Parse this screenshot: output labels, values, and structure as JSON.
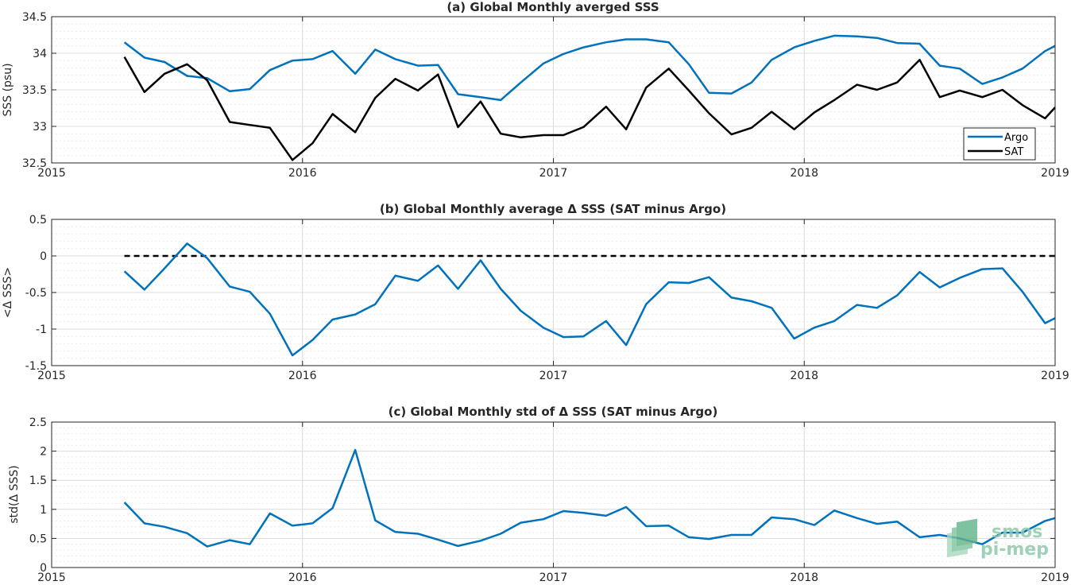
{
  "logo": {
    "line1": "smos",
    "line2": "pi-mep"
  },
  "chart_data": [
    {
      "type": "line",
      "title": "(a) Global Monthly averged SSS",
      "xlabel": "",
      "ylabel": "SSS (psu)",
      "xlim": [
        2015,
        2019
      ],
      "ylim": [
        32.5,
        34.5
      ],
      "xticks": [
        2015,
        2016,
        2017,
        2018,
        2019
      ],
      "xtick_labels": [
        "2015",
        "2016",
        "2017",
        "2018",
        "2019"
      ],
      "yticks": [
        32.5,
        33,
        33.5,
        34,
        34.5
      ],
      "ytick_labels": [
        "32.5",
        "33",
        "33.5",
        "34",
        "34.5"
      ],
      "grid": true,
      "legend": "bottom-right",
      "x": [
        2015.29,
        2015.37,
        2015.45,
        2015.54,
        2015.62,
        2015.71,
        2015.79,
        2015.87,
        2015.96,
        2016.04,
        2016.12,
        2016.21,
        2016.29,
        2016.37,
        2016.46,
        2016.54,
        2016.62,
        2016.71,
        2016.79,
        2016.87,
        2016.96,
        2017.04,
        2017.12,
        2017.21,
        2017.29,
        2017.37,
        2017.46,
        2017.54,
        2017.62,
        2017.71,
        2017.79,
        2017.87,
        2017.96,
        2018.04,
        2018.12,
        2018.21,
        2018.29,
        2018.37,
        2018.46,
        2018.54,
        2018.62,
        2018.71,
        2018.79,
        2018.87,
        2018.96,
        2019.0
      ],
      "series": [
        {
          "name": "Argo",
          "color": "#0072bd",
          "values": [
            34.15,
            33.94,
            33.88,
            33.69,
            33.66,
            33.48,
            33.51,
            33.77,
            33.9,
            33.92,
            34.03,
            33.72,
            34.05,
            33.92,
            33.83,
            33.84,
            33.44,
            33.4,
            33.36,
            33.6,
            33.86,
            33.99,
            34.08,
            34.15,
            34.19,
            34.19,
            34.15,
            33.85,
            33.46,
            33.45,
            33.6,
            33.91,
            34.08,
            34.17,
            34.24,
            34.23,
            34.21,
            34.14,
            34.13,
            33.83,
            33.79,
            33.58,
            33.67,
            33.79,
            34.03,
            34.1
          ]
        },
        {
          "name": "SAT",
          "color": "#000000",
          "values": [
            33.95,
            33.47,
            33.72,
            33.85,
            33.63,
            33.06,
            33.02,
            32.98,
            32.54,
            32.77,
            33.17,
            32.92,
            33.39,
            33.65,
            33.49,
            33.71,
            32.99,
            33.34,
            32.9,
            32.85,
            32.88,
            32.88,
            32.99,
            33.27,
            32.96,
            33.53,
            33.79,
            33.49,
            33.18,
            32.89,
            32.98,
            33.2,
            32.96,
            33.19,
            33.36,
            33.57,
            33.5,
            33.6,
            33.91,
            33.4,
            33.49,
            33.4,
            33.5,
            33.29,
            33.11,
            33.26
          ]
        }
      ]
    },
    {
      "type": "line",
      "title": "(b) Global Monthly average Δ SSS (SAT minus Argo)",
      "xlabel": "",
      "ylabel": "<Δ SSS>",
      "xlim": [
        2015,
        2019
      ],
      "ylim": [
        -1.5,
        0.5
      ],
      "xticks": [
        2015,
        2016,
        2017,
        2018,
        2019
      ],
      "xtick_labels": [
        "2015",
        "2016",
        "2017",
        "2018",
        "2019"
      ],
      "yticks": [
        -1.5,
        -1,
        -0.5,
        0,
        0.5
      ],
      "ytick_labels": [
        "-1.5",
        "-1",
        "-0.5",
        "0",
        "0.5"
      ],
      "grid": true,
      "reference_line": {
        "y": 0,
        "x_start": 2015.29,
        "x_end": 2019.0,
        "color": "#000000",
        "style": "dashed"
      },
      "x": [
        2015.29,
        2015.37,
        2015.45,
        2015.54,
        2015.62,
        2015.71,
        2015.79,
        2015.87,
        2015.96,
        2016.04,
        2016.12,
        2016.21,
        2016.29,
        2016.37,
        2016.46,
        2016.54,
        2016.62,
        2016.71,
        2016.79,
        2016.87,
        2016.96,
        2017.04,
        2017.12,
        2017.21,
        2017.29,
        2017.37,
        2017.46,
        2017.54,
        2017.62,
        2017.71,
        2017.79,
        2017.87,
        2017.96,
        2018.04,
        2018.12,
        2018.21,
        2018.29,
        2018.37,
        2018.46,
        2018.54,
        2018.62,
        2018.71,
        2018.79,
        2018.87,
        2018.96,
        2019.0
      ],
      "series": [
        {
          "color": "#0072bd",
          "values": [
            -0.21,
            -0.46,
            -0.17,
            0.17,
            -0.03,
            -0.42,
            -0.49,
            -0.79,
            -1.36,
            -1.15,
            -0.87,
            -0.8,
            -0.66,
            -0.27,
            -0.34,
            -0.13,
            -0.45,
            -0.06,
            -0.45,
            -0.75,
            -0.98,
            -1.11,
            -1.1,
            -0.89,
            -1.22,
            -0.66,
            -0.36,
            -0.37,
            -0.29,
            -0.57,
            -0.62,
            -0.71,
            -1.13,
            -0.98,
            -0.89,
            -0.67,
            -0.71,
            -0.54,
            -0.22,
            -0.43,
            -0.3,
            -0.18,
            -0.17,
            -0.49,
            -0.92,
            -0.85
          ]
        }
      ]
    },
    {
      "type": "line",
      "title": "(c) Global Monthly std of Δ SSS (SAT minus Argo)",
      "xlabel": "",
      "ylabel": "std(Δ SSS)",
      "xlim": [
        2015,
        2019
      ],
      "ylim": [
        0,
        2.5
      ],
      "xticks": [
        2015,
        2016,
        2017,
        2018,
        2019
      ],
      "xtick_labels": [
        "2015",
        "2016",
        "2017",
        "2018",
        "2019"
      ],
      "yticks": [
        0,
        0.5,
        1,
        1.5,
        2,
        2.5
      ],
      "ytick_labels": [
        "0",
        "0.5",
        "1",
        "1.5",
        "2",
        "2.5"
      ],
      "grid": true,
      "x": [
        2015.29,
        2015.37,
        2015.45,
        2015.54,
        2015.62,
        2015.71,
        2015.79,
        2015.87,
        2015.96,
        2016.04,
        2016.12,
        2016.21,
        2016.29,
        2016.37,
        2016.46,
        2016.54,
        2016.62,
        2016.71,
        2016.79,
        2016.87,
        2016.96,
        2017.04,
        2017.12,
        2017.21,
        2017.29,
        2017.37,
        2017.46,
        2017.54,
        2017.62,
        2017.71,
        2017.79,
        2017.87,
        2017.96,
        2018.04,
        2018.12,
        2018.21,
        2018.29,
        2018.37,
        2018.46,
        2018.54,
        2018.62,
        2018.71,
        2018.79,
        2018.87,
        2018.96,
        2019.0
      ],
      "series": [
        {
          "color": "#0072bd",
          "values": [
            1.12,
            0.76,
            0.7,
            0.59,
            0.36,
            0.47,
            0.4,
            0.93,
            0.72,
            0.76,
            1.02,
            2.02,
            0.81,
            0.61,
            0.58,
            0.48,
            0.37,
            0.46,
            0.58,
            0.77,
            0.83,
            0.97,
            0.94,
            0.89,
            1.04,
            0.71,
            0.72,
            0.52,
            0.49,
            0.56,
            0.56,
            0.86,
            0.83,
            0.73,
            0.98,
            0.85,
            0.75,
            0.79,
            0.52,
            0.56,
            0.5,
            0.4,
            0.6,
            0.6,
            0.8,
            0.85
          ]
        }
      ]
    }
  ]
}
